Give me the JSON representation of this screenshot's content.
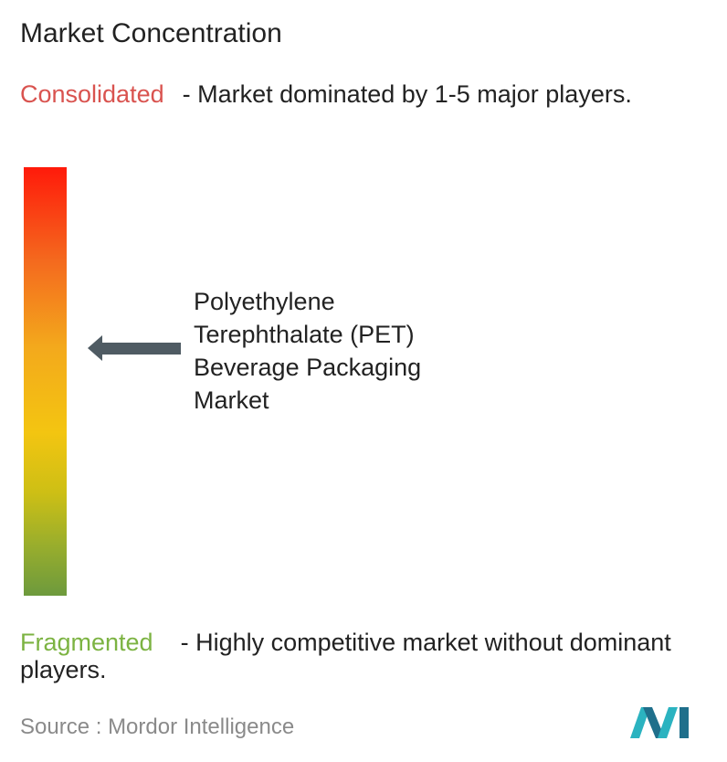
{
  "header": {
    "title": "Market Concentration"
  },
  "consolidated": {
    "label": "Consolidated",
    "description": "- Market dominated by 1-5 major players."
  },
  "market": {
    "lines": [
      "Polyethylene",
      "Terephthalate (PET)",
      "Beverage Packaging",
      "Market"
    ]
  },
  "fragmented": {
    "label": "Fragmented",
    "description": "- Highly competitive market without dominant players."
  },
  "source": {
    "label": "Source :",
    "name": "Mordor Intelligence"
  }
}
